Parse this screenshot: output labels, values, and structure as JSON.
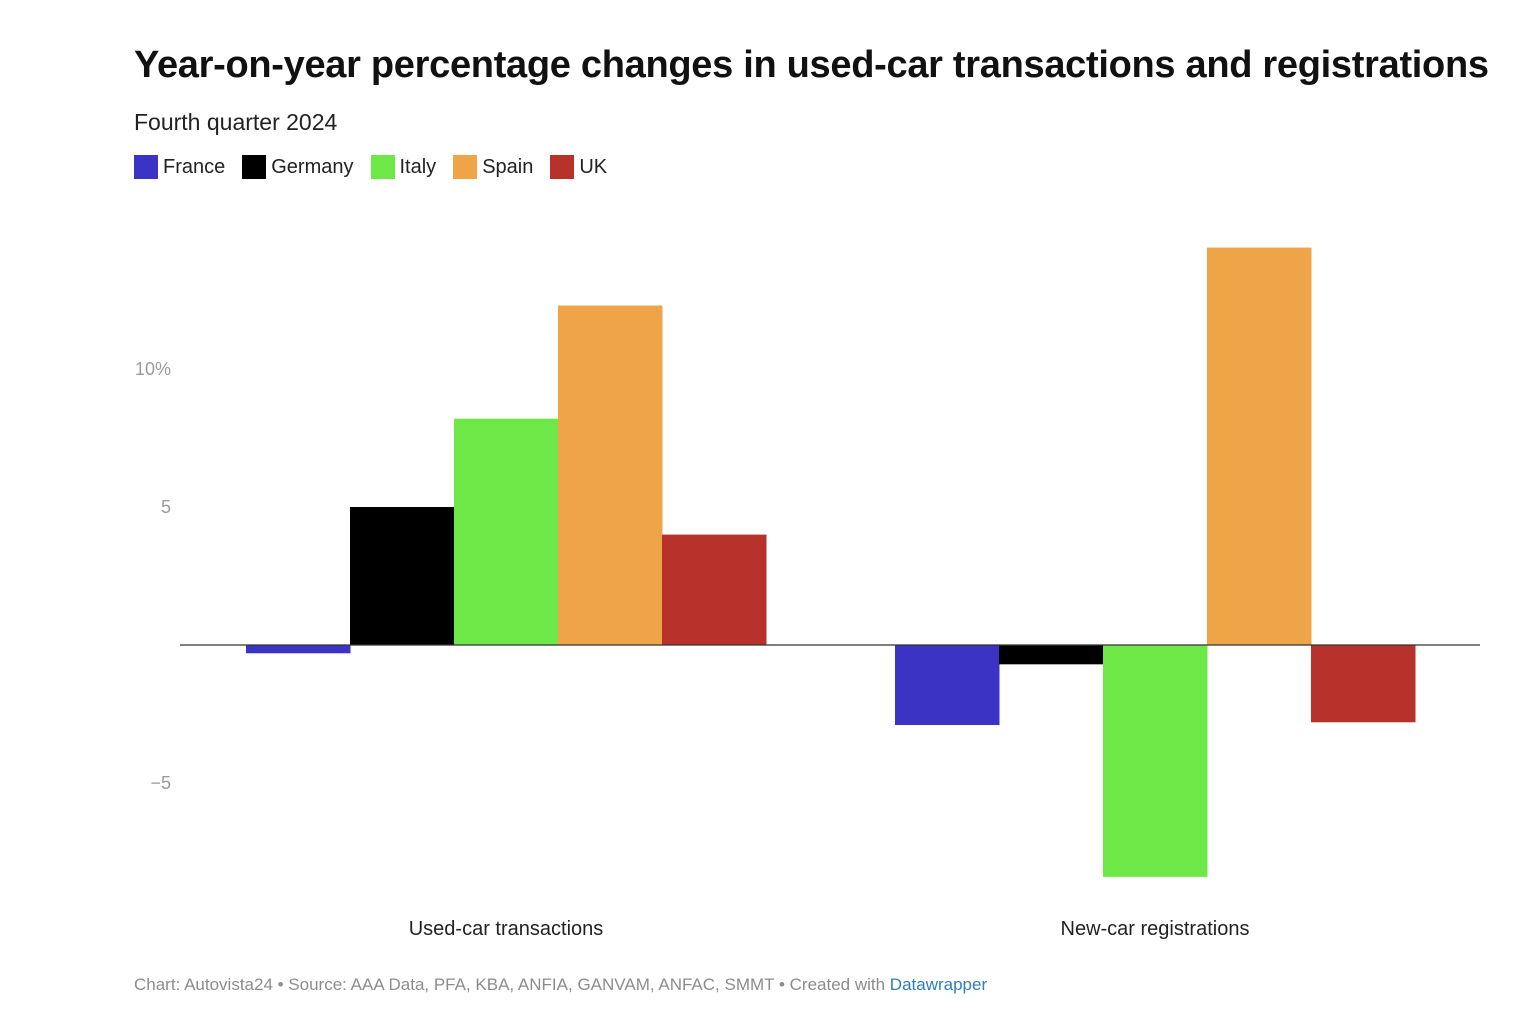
{
  "header": {
    "title": "Year-on-year percentage changes in used-car transactions and registrations",
    "subtitle": "Fourth quarter 2024"
  },
  "legend": [
    {
      "label": "France",
      "color": "#3a33c4"
    },
    {
      "label": "Germany",
      "color": "#000000"
    },
    {
      "label": "Italy",
      "color": "#6de846"
    },
    {
      "label": "Spain",
      "color": "#f0a448"
    },
    {
      "label": "UK",
      "color": "#b8322c"
    }
  ],
  "chart_data": {
    "type": "bar",
    "title": "Year-on-year percentage changes in used-car transactions and registrations",
    "subtitle": "Fourth quarter 2024",
    "categories": [
      "Used-car transactions",
      "New-car registrations"
    ],
    "series": [
      {
        "name": "France",
        "color": "#3a33c4",
        "values": [
          -0.3,
          -2.9
        ]
      },
      {
        "name": "Germany",
        "color": "#000000",
        "values": [
          5.0,
          -0.7
        ]
      },
      {
        "name": "Italy",
        "color": "#6de846",
        "values": [
          8.2,
          -8.4
        ]
      },
      {
        "name": "Spain",
        "color": "#f0a448",
        "values": [
          12.3,
          14.4
        ]
      },
      {
        "name": "UK",
        "color": "#b8322c",
        "values": [
          4.0,
          -2.8
        ]
      }
    ],
    "y_ticks": [
      {
        "value": 10,
        "label": "10%"
      },
      {
        "value": 5,
        "label": "5"
      },
      {
        "value": -5,
        "label": "−5"
      }
    ],
    "ylim": [
      -9,
      16
    ],
    "grid": false,
    "legend_position": "top-left"
  },
  "footer": {
    "text": "Chart: Autovista24 • Source: AAA Data, PFA, KBA, ANFIA, GANVAM, ANFAC, SMMT • Created with ",
    "link_label": "Datawrapper"
  }
}
